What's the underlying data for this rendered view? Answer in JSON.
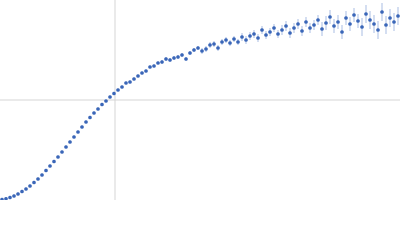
{
  "chart_data": {
    "type": "scatter",
    "xlim": [
      0,
      400
    ],
    "ylim": [
      0,
      200
    ],
    "xgrid": [
      115
    ],
    "ygrid": [
      100
    ],
    "grid_color": "#d4d4d4",
    "color": "#3a66b8",
    "error_color": "#a9bde3",
    "x": [
      2,
      6,
      10,
      14,
      18,
      22,
      26,
      30,
      34,
      38,
      42,
      46,
      50,
      54,
      58,
      62,
      66,
      70,
      74,
      78,
      82,
      86,
      90,
      94,
      98,
      102,
      106,
      110,
      114,
      118,
      122,
      126,
      130,
      134,
      138,
      142,
      146,
      150,
      154,
      158,
      162,
      166,
      170,
      174,
      178,
      182,
      186,
      190,
      194,
      198,
      202,
      206,
      210,
      214,
      218,
      222,
      226,
      230,
      234,
      238,
      242,
      246,
      250,
      254,
      258,
      262,
      266,
      270,
      274,
      278,
      282,
      286,
      290,
      294,
      298,
      302,
      306,
      310,
      314,
      318,
      322,
      326,
      330,
      334,
      338,
      342,
      346,
      350,
      354,
      358,
      362,
      366,
      370,
      374,
      378,
      382,
      386,
      390,
      394,
      398
    ],
    "values": [
      0.5,
      1.2,
      2.5,
      4,
      6,
      8.5,
      11,
      14,
      17.5,
      21,
      25,
      29.5,
      34,
      38.5,
      43,
      48,
      53,
      58,
      63,
      68,
      73,
      78,
      82.5,
      87,
      91,
      95.5,
      99,
      103,
      106.5,
      110,
      113,
      117,
      118,
      121,
      124,
      127,
      129,
      133,
      134,
      137,
      138,
      141,
      140,
      142,
      143,
      145,
      141,
      147,
      150,
      152,
      149,
      151,
      155,
      156,
      152,
      158,
      160,
      157,
      161,
      158,
      163,
      160,
      164,
      166,
      162,
      170,
      165,
      168,
      172,
      166,
      170,
      174,
      167,
      172,
      176,
      169,
      178,
      172,
      175,
      180,
      171,
      177,
      183,
      174,
      178,
      168,
      182,
      176,
      185,
      179,
      173,
      186,
      180,
      176,
      170,
      188,
      175,
      182,
      178,
      184
    ],
    "errors": [
      0.5,
      0.5,
      0.5,
      0.5,
      0.5,
      0.5,
      0.5,
      0.5,
      0.5,
      0.5,
      0.8,
      0.8,
      0.8,
      0.8,
      0.8,
      0.8,
      0.8,
      0.8,
      0.8,
      0.8,
      1,
      1,
      1,
      1,
      1,
      1,
      1,
      1,
      1,
      1,
      1.5,
      1.5,
      1.5,
      1.5,
      1.5,
      1.5,
      1.5,
      1.5,
      1.5,
      1.5,
      2,
      2,
      2,
      2,
      2,
      2,
      2,
      2,
      2,
      2,
      3,
      3,
      3,
      3,
      3,
      3,
      3,
      3,
      3,
      3,
      4,
      4,
      4,
      4,
      4,
      4,
      4,
      4,
      4,
      4,
      5,
      5,
      5,
      5,
      5,
      5,
      5,
      5,
      5,
      5,
      7,
      7,
      7,
      7,
      7,
      7,
      7,
      7,
      7,
      7,
      9,
      9,
      9,
      9,
      9,
      9,
      9,
      9,
      9,
      9
    ]
  }
}
